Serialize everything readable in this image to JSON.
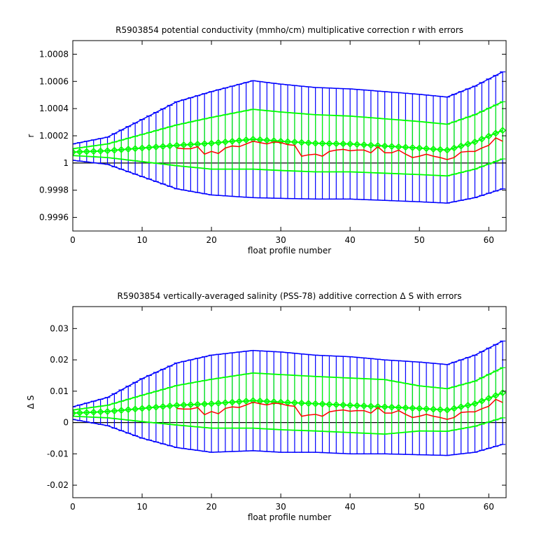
{
  "chart_data": [
    {
      "type": "line",
      "title": "R5903854 potential conductivity (mmho/cm) multiplicative correction r with errors",
      "xlabel": "float profile number",
      "ylabel": "r",
      "xlim": [
        0,
        62.5
      ],
      "ylim": [
        0.9995,
        1.0009
      ],
      "xticks": [
        0,
        10,
        20,
        30,
        40,
        50,
        60
      ],
      "yticks": [
        0.9996,
        0.9998,
        1,
        1.0002,
        1.0004,
        1.0006,
        1.0008
      ],
      "ytick_labels": [
        "0.9996",
        "0.9998",
        "1",
        "1.0002",
        "1.0004",
        "1.0006",
        "1.0008"
      ],
      "reference_line": 1,
      "grid": false,
      "colors": {
        "fit": "#00ff00",
        "raw": "#ff0000",
        "outer_error": "#0000ff",
        "inner_error": "#00ff00",
        "reference": "#000000"
      },
      "knots": {
        "x": [
          0,
          5,
          10,
          15,
          20,
          26,
          30,
          35,
          40,
          45,
          50,
          54,
          58,
          62
        ],
        "fit": [
          1.00008,
          1.00009,
          1.00011,
          1.00013,
          1.000145,
          1.000175,
          1.00016,
          1.000145,
          1.00014,
          1.000125,
          1.00011,
          1.000095,
          1.000155,
          1.00024
        ],
        "inner_err": [
          2.5e-05,
          5e-05,
          0.0001,
          0.00015,
          0.00019,
          0.00022,
          0.000215,
          0.00021,
          0.000205,
          0.0002,
          0.000195,
          0.00019,
          0.0002,
          0.00021
        ],
        "outer_err": [
          6e-05,
          0.0001,
          0.00021,
          0.00032,
          0.00038,
          0.00043,
          0.00042,
          0.00041,
          0.000405,
          0.0004,
          0.000395,
          0.00039,
          0.00041,
          0.00043
        ]
      },
      "raw": {
        "x": [
          15,
          16,
          17,
          18,
          19,
          20,
          21,
          22,
          23,
          24,
          25,
          26,
          27,
          28,
          29,
          30,
          31,
          32,
          33,
          34,
          35,
          36,
          37,
          38,
          39,
          40,
          41,
          42,
          43,
          44,
          45,
          46,
          47,
          48,
          49,
          50,
          51,
          52,
          53,
          54,
          55,
          56,
          57,
          58,
          59,
          60,
          61,
          62
        ],
        "values": [
          1.00011,
          1.000105,
          1.000105,
          1.00012,
          1.000065,
          1.000085,
          1.00007,
          1.00011,
          1.000125,
          1.00012,
          1.00014,
          1.00016,
          1.00015,
          1.00014,
          1.000155,
          1.00015,
          1.000135,
          1.00013,
          1.00005,
          1.00006,
          1.000065,
          1.00005,
          1.000085,
          1.000095,
          1.0001,
          1.00009,
          1.000095,
          1.000095,
          1.000075,
          1.00012,
          1.000075,
          1.000075,
          1.000095,
          1.000065,
          1.00004,
          1.00005,
          1.000065,
          1.00005,
          1.00004,
          1.000025,
          1.00004,
          1.00008,
          1.000085,
          1.000085,
          1.00011,
          1.00013,
          1.000185,
          1.00016
        ]
      }
    },
    {
      "type": "line",
      "title": "R5903854 vertically-averaged salinity (PSS-78) additive correction Δ S with errors",
      "xlabel": "float profile number",
      "ylabel": "Δ S",
      "xlim": [
        0,
        62.5
      ],
      "ylim": [
        -0.024,
        0.037
      ],
      "xticks": [
        0,
        10,
        20,
        30,
        40,
        50,
        60
      ],
      "yticks": [
        -0.02,
        -0.01,
        0,
        0.01,
        0.02,
        0.03
      ],
      "ytick_labels": [
        "-0.02",
        "-0.01",
        "0",
        "0.01",
        "0.02",
        "0.03"
      ],
      "reference_line": 0,
      "grid": false,
      "colors": {
        "fit": "#00ff00",
        "raw": "#ff0000",
        "outer_error": "#0000ff",
        "inner_error": "#00ff00",
        "reference": "#000000"
      },
      "knots": {
        "x": [
          0,
          5,
          10,
          15,
          20,
          26,
          30,
          35,
          40,
          45,
          50,
          54,
          58,
          62
        ],
        "fit": [
          0.003,
          0.0035,
          0.0045,
          0.0055,
          0.006,
          0.007,
          0.0065,
          0.006,
          0.0055,
          0.005,
          0.0045,
          0.004,
          0.006,
          0.0095
        ],
        "inner_err": [
          0.001,
          0.002,
          0.0042,
          0.0063,
          0.0078,
          0.0088,
          0.0088,
          0.0087,
          0.0087,
          0.0087,
          0.0072,
          0.0068,
          0.0072,
          0.008
        ],
        "outer_err": [
          0.002,
          0.0045,
          0.0095,
          0.0135,
          0.0155,
          0.016,
          0.016,
          0.0155,
          0.0155,
          0.015,
          0.0148,
          0.0145,
          0.0155,
          0.0165
        ]
      },
      "raw": {
        "x": [
          15,
          16,
          17,
          18,
          19,
          20,
          21,
          22,
          23,
          24,
          25,
          26,
          27,
          28,
          29,
          30,
          31,
          32,
          33,
          34,
          35,
          36,
          37,
          38,
          39,
          40,
          41,
          42,
          43,
          44,
          45,
          46,
          47,
          48,
          49,
          50,
          51,
          52,
          53,
          54,
          55,
          56,
          57,
          58,
          59,
          60,
          61,
          62
        ],
        "values": [
          0.0045,
          0.0043,
          0.0043,
          0.0048,
          0.0025,
          0.0035,
          0.0028,
          0.0045,
          0.005,
          0.0048,
          0.0056,
          0.0065,
          0.006,
          0.0056,
          0.0062,
          0.006,
          0.0054,
          0.0052,
          0.002,
          0.0024,
          0.0026,
          0.002,
          0.0034,
          0.0038,
          0.004,
          0.0036,
          0.0038,
          0.0038,
          0.003,
          0.0048,
          0.003,
          0.003,
          0.0038,
          0.0026,
          0.0016,
          0.002,
          0.0026,
          0.002,
          0.0016,
          0.001,
          0.0016,
          0.0032,
          0.0034,
          0.0034,
          0.0044,
          0.0052,
          0.0074,
          0.0064
        ]
      }
    }
  ]
}
